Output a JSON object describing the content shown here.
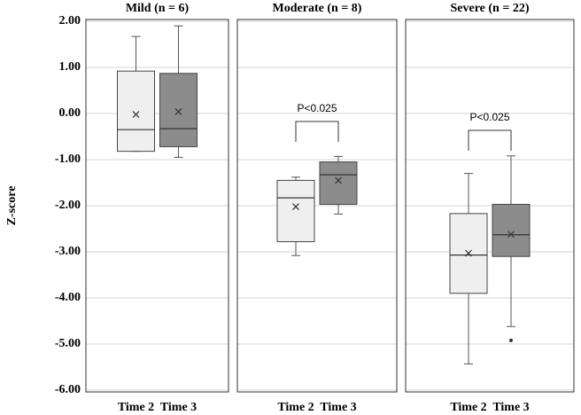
{
  "chart_data": [
    {
      "type": "box",
      "title": "Mild (n = 6)",
      "ylabel": "Z-score",
      "categories": [
        "Time 2",
        "Time 3"
      ],
      "colors": [
        "#efefef",
        "#8c8c8c"
      ],
      "boxes": [
        {
          "whislo": -0.82,
          "q1": -0.82,
          "med": -0.35,
          "q3": 0.92,
          "whishi": 1.67,
          "mean": -0.02,
          "fliers": []
        },
        {
          "whislo": -0.95,
          "q1": -0.72,
          "med": -0.33,
          "q3": 0.87,
          "whishi": 1.9,
          "mean": 0.04,
          "fliers": []
        }
      ],
      "ylim": [
        -6,
        2
      ],
      "yticks": [
        {
          "value": -6,
          "label": "-6.00"
        },
        {
          "value": -5,
          "label": "-5.00"
        },
        {
          "value": -4,
          "label": "-4.00"
        },
        {
          "value": -3,
          "label": "-3.00"
        },
        {
          "value": -2,
          "label": "-2.00"
        },
        {
          "value": -1,
          "label": "-1.00"
        },
        {
          "value": 0,
          "label": "0.00"
        },
        {
          "value": 1,
          "label": "1.00"
        },
        {
          "value": 2,
          "label": "2.00"
        }
      ],
      "grid": true
    },
    {
      "type": "box",
      "title": "Moderate (n = 8)",
      "categories": [
        "Time 2",
        "Time 3"
      ],
      "colors": [
        "#efefef",
        "#8c8c8c"
      ],
      "boxes": [
        {
          "whislo": -3.08,
          "q1": -2.78,
          "med": -1.83,
          "q3": -1.45,
          "whishi": -1.38,
          "mean": -2.02,
          "fliers": []
        },
        {
          "whislo": -2.18,
          "q1": -1.97,
          "med": -1.33,
          "q3": -1.05,
          "whishi": -0.93,
          "mean": -1.45,
          "fliers": []
        }
      ],
      "ylim": [
        -6,
        2
      ],
      "yticks": [
        -6,
        -5,
        -4,
        -3,
        -2,
        -1,
        0,
        1,
        2
      ],
      "grid": true,
      "annotation": "P<0.025"
    },
    {
      "type": "box",
      "title": "Severe (n = 22)",
      "categories": [
        "Time 2",
        "Time 3"
      ],
      "colors": [
        "#efefef",
        "#8c8c8c"
      ],
      "boxes": [
        {
          "whislo": -5.43,
          "q1": -3.9,
          "med": -3.07,
          "q3": -2.17,
          "whishi": -1.3,
          "mean": -3.03,
          "fliers": []
        },
        {
          "whislo": -4.62,
          "q1": -3.1,
          "med": -2.63,
          "q3": -1.97,
          "whishi": -0.92,
          "mean": -2.62,
          "fliers": [
            -4.92
          ]
        }
      ],
      "ylim": [
        -6,
        2
      ],
      "yticks": [
        -6,
        -5,
        -4,
        -3,
        -2,
        -1,
        0,
        1,
        2
      ],
      "grid": true,
      "annotation": "P<0.025"
    }
  ]
}
